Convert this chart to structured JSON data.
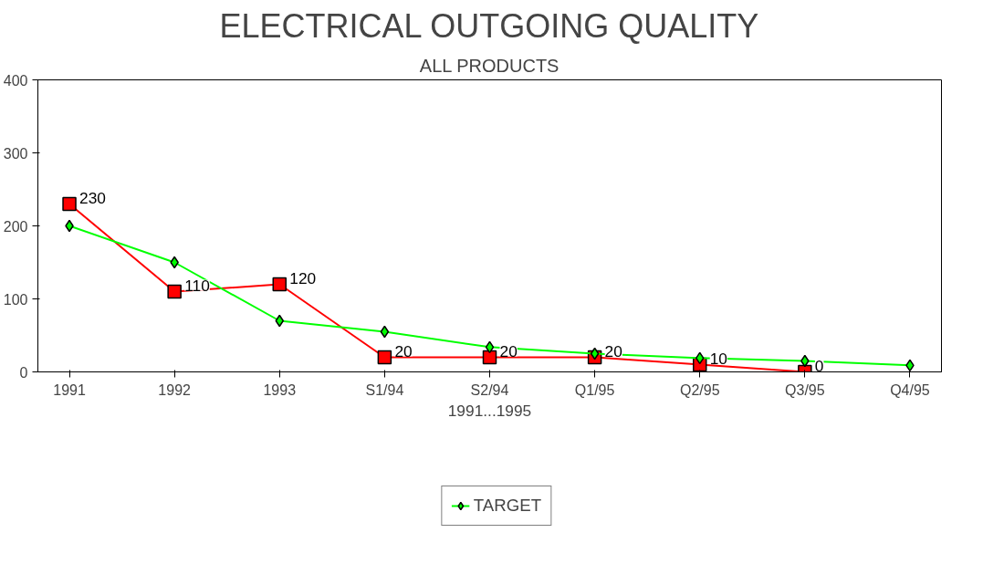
{
  "chart_data": {
    "type": "line",
    "title": "ELECTRICAL OUTGOING QUALITY",
    "subtitle": "ALL PRODUCTS",
    "xlabel": "1991...1995",
    "categories": [
      "1991",
      "1992",
      "1993",
      "S1/94",
      "S2/94",
      "Q1/95",
      "Q2/95",
      "Q3/95",
      "Q4/95"
    ],
    "series": [
      {
        "color": "#ff0000",
        "marker": "square",
        "values": [
          230,
          110,
          120,
          20,
          20,
          20,
          10,
          0,
          null
        ],
        "value_labels": [
          "230",
          "110",
          "120",
          "20",
          "20",
          "20",
          "10",
          "0",
          null
        ]
      },
      {
        "name": "TARGET",
        "color": "#00ff00",
        "marker": "diamond",
        "values": [
          200,
          150,
          70,
          55,
          34,
          25,
          19,
          15,
          9
        ]
      }
    ],
    "ylim": [
      0,
      400
    ],
    "yticks": [
      0,
      100,
      200,
      300,
      400
    ],
    "grid": false,
    "legend": "bottom"
  }
}
